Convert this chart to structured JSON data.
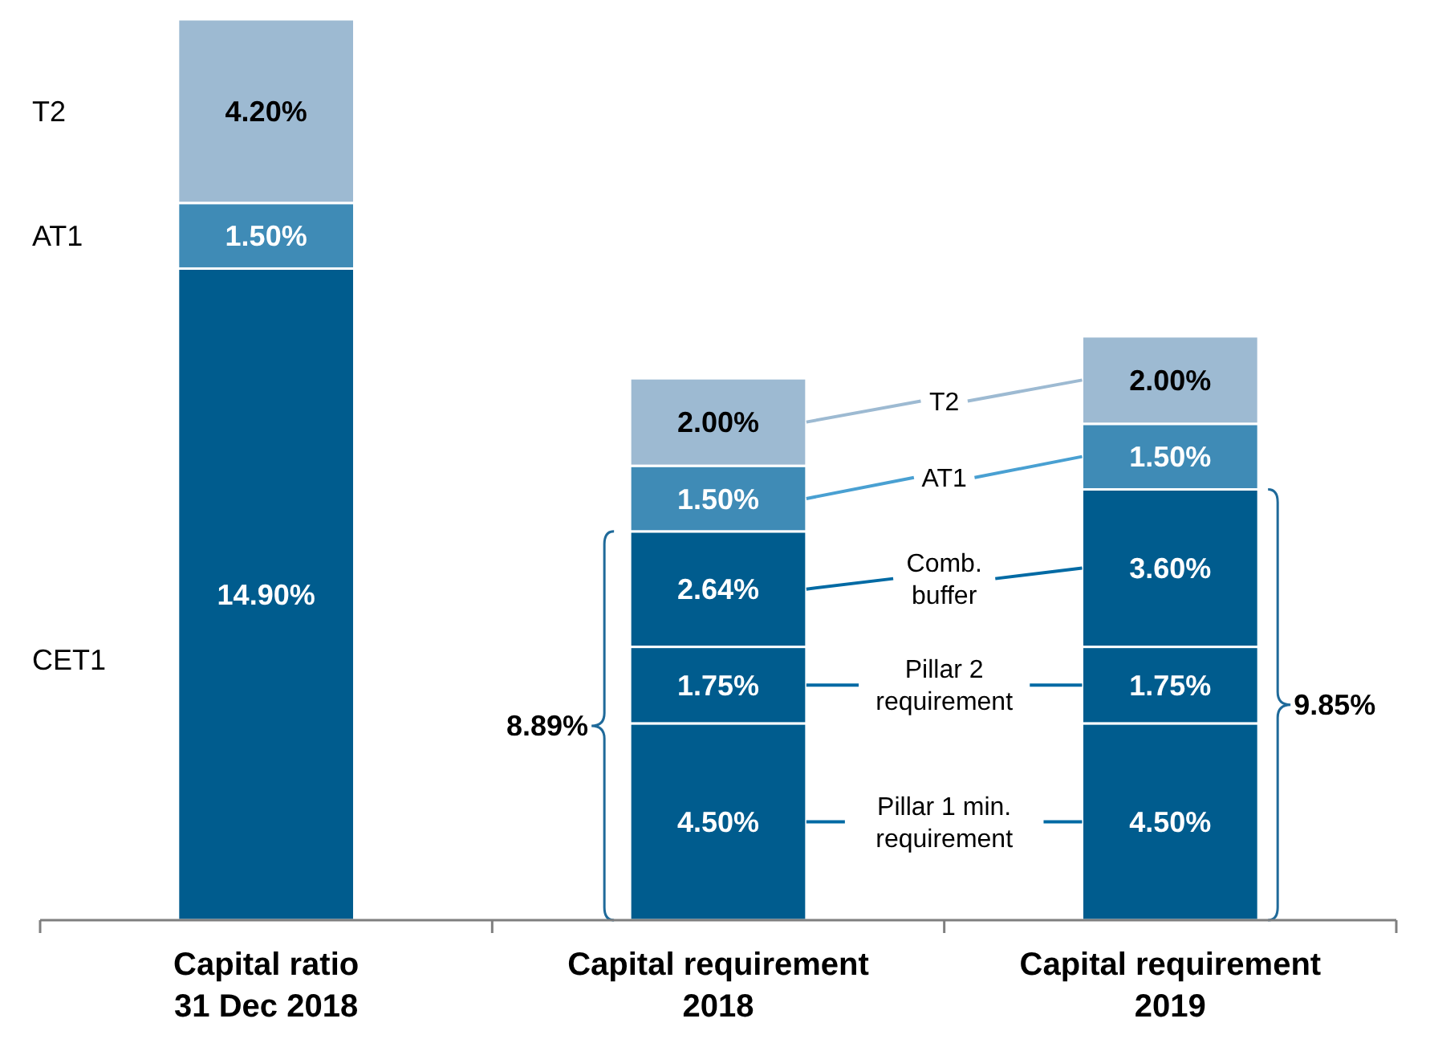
{
  "chart_data": {
    "type": "bar",
    "stacked": true,
    "categories": [
      "Capital ratio\n31 Dec 2018",
      "Capital requirement\n2018",
      "Capital requirement\n2019"
    ],
    "series": [
      {
        "name": "Pillar 1 min. requirement",
        "color": "#005c8e",
        "values": [
          14.9,
          4.5,
          4.5
        ],
        "value_labels": [
          "14.90%",
          "4.50%",
          "4.50%"
        ]
      },
      {
        "name": "Pillar 2 requirement",
        "color": "#005c8e",
        "values": [
          null,
          1.75,
          1.75
        ],
        "value_labels": [
          null,
          "1.75%",
          "1.75%"
        ]
      },
      {
        "name": "Comb. buffer",
        "color": "#005c8e",
        "values": [
          null,
          2.64,
          3.6
        ],
        "value_labels": [
          null,
          "2.64%",
          "3.60%"
        ]
      },
      {
        "name": "AT1",
        "color": "#3f8bb6",
        "values": [
          1.5,
          1.5,
          1.5
        ],
        "value_labels": [
          "1.50%",
          "1.50%",
          "1.50%"
        ]
      },
      {
        "name": "T2",
        "color": "#9dbad2",
        "values": [
          4.2,
          2.0,
          2.0
        ],
        "value_labels": [
          "4.20%",
          "2.00%",
          "2.00%"
        ]
      }
    ],
    "annotations": [
      "T2",
      "AT1",
      "CET1",
      "8.89%",
      "9.85%"
    ]
  }
}
